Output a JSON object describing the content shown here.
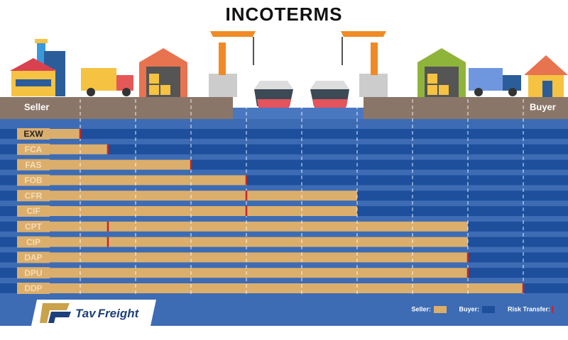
{
  "chart_data": {
    "type": "bar",
    "orientation": "horizontal",
    "title": "INCOTERMS",
    "start_label": "Seller",
    "end_label": "Buyer",
    "categories": [
      "EXW",
      "FCA",
      "FAS",
      "FOB",
      "CFR",
      "CIF",
      "CPT",
      "CIP",
      "DAP",
      "DPU",
      "DDP"
    ],
    "series": [
      {
        "name": "Seller:",
        "color": "#dcae6c",
        "values": [
          1,
          1.5,
          3,
          4,
          6,
          6,
          8,
          8,
          8,
          8,
          9
        ]
      },
      {
        "name": "Risk Transfer:",
        "color": "#c0262c",
        "values": [
          1,
          1.5,
          3,
          4,
          4,
          4,
          1.5,
          1.5,
          8,
          8,
          9
        ]
      }
    ],
    "buyer": {
      "name": "Buyer:",
      "color": "#1d4f9c"
    },
    "brand": {
      "part1": "Tav",
      "part2": "Freight"
    }
  }
}
